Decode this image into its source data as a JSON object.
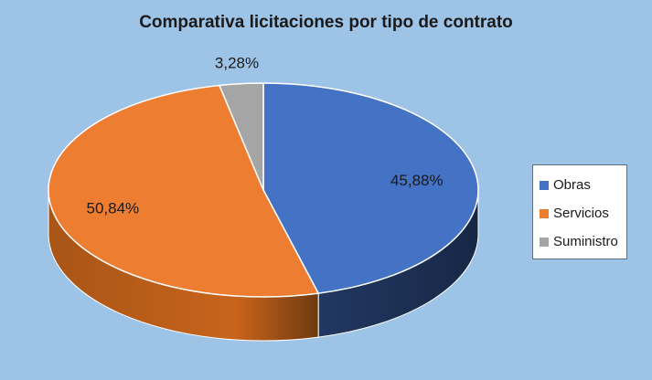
{
  "chart_data": {
    "type": "pie",
    "title": "Comparativa licitaciones por tipo de contrato",
    "categories": [
      "Obras",
      "Servicios",
      "Suministro"
    ],
    "values": [
      45.88,
      50.84,
      3.28
    ],
    "data_labels": [
      "45,88%",
      "50,84%",
      "3,28%"
    ],
    "colors": [
      "#4472C4",
      "#ED7D31",
      "#A5A5A5"
    ],
    "style": "3d",
    "legend_position": "right"
  }
}
